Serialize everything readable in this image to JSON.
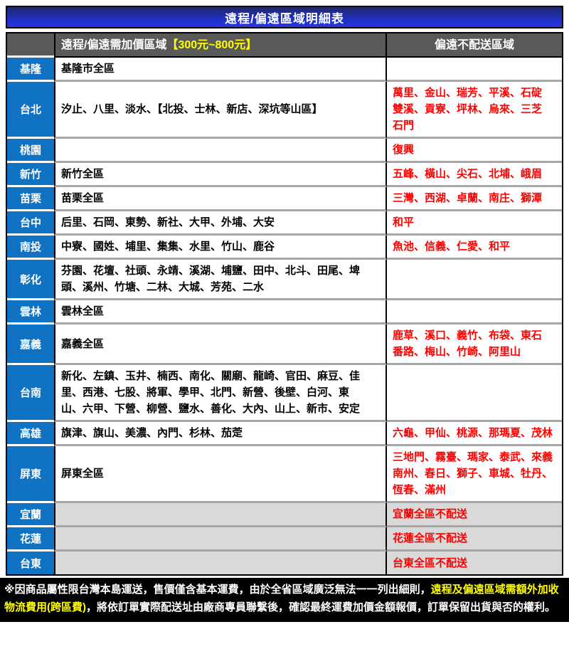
{
  "title": "遠程/偏遠區域明細表",
  "header": {
    "surcharge_label": "遠程/偏遠需加價區域",
    "surcharge_range": "【300元~800元】",
    "no_delivery_label": "偏遠不配送區域"
  },
  "colors": {
    "title_gradient_top": "#23266a",
    "title_gradient_bottom": "#2736e4",
    "region_blue": "#0f72c2",
    "header_gray": "#595959",
    "row_separator_gray": "#a6a6a6",
    "disabled_row_gray": "#d9d9d9",
    "warning_red": "#ff0000",
    "highlight_yellow": "#ffff00"
  },
  "table": {
    "rows": [
      {
        "region": "基隆",
        "surcharge": "基隆市全區",
        "no_delivery": "",
        "gray": false
      },
      {
        "region": "台北",
        "surcharge": "汐止、八里、淡水、【北投、士林、新店、深坑等山區】",
        "no_delivery": "萬里、金山、瑞芳、平溪、石碇\n雙溪、貢寮、坪林、烏來、三芝\n石門",
        "gray": false
      },
      {
        "region": "桃園",
        "surcharge": "",
        "no_delivery": "復興",
        "gray": false
      },
      {
        "region": "新竹",
        "surcharge": "新竹全區",
        "no_delivery": "五峰、橫山、尖石、北埔、峨眉",
        "gray": false
      },
      {
        "region": "苗栗",
        "surcharge": "苗栗全區",
        "no_delivery": "三灣、西湖、卓蘭、南庄、獅潭",
        "gray": false
      },
      {
        "region": "台中",
        "surcharge": "后里、石岡、東勢、新社、大甲、外埔、大安",
        "no_delivery": "和平",
        "gray": false
      },
      {
        "region": "南投",
        "surcharge": "中寮、國姓、埔里、集集、水里、竹山、鹿谷",
        "no_delivery": "魚池、信義、仁愛、和平",
        "gray": false
      },
      {
        "region": "彰化",
        "surcharge": "芬園、花壇、社頭、永靖、溪湖、埔鹽、田中、北斗、田尾、埤\n頭、溪州、竹塘、二林、大城、芳苑、二水",
        "no_delivery": "",
        "gray": false
      },
      {
        "region": "雲林",
        "surcharge": "雲林全區",
        "no_delivery": "",
        "gray": false
      },
      {
        "region": "嘉義",
        "surcharge": "嘉義全區",
        "no_delivery": "鹿草、溪口、義竹、布袋、東石\n番路、梅山、竹崎、阿里山",
        "gray": false
      },
      {
        "region": "台南",
        "surcharge": "新化、左鎮、玉井、楠西、南化、關廟、龍崎、官田、麻豆、佳\n里、西港、七股、將軍、學甲、北門、新營、後壁、白河、東\n山、六甲、下營、柳營、鹽水、善化、大內、山上、新市、安定",
        "no_delivery": "",
        "gray": false
      },
      {
        "region": "高雄",
        "surcharge": "旗津、旗山、美濃、內門、杉林、茄萣",
        "no_delivery": "六龜、甲仙、桃源、那瑪夏、茂林",
        "gray": false
      },
      {
        "region": "屏東",
        "surcharge": "屏東全區",
        "no_delivery": "三地門、霧臺、瑪家、泰武、來義\n南州、春日、獅子、車城、牡丹、\n恆春、滿州",
        "gray": false
      },
      {
        "region": "宜蘭",
        "surcharge": "",
        "no_delivery": "宜蘭全區不配送",
        "gray": true
      },
      {
        "region": "花蓮",
        "surcharge": "",
        "no_delivery": "花蓮全區不配送",
        "gray": true
      },
      {
        "region": "台東",
        "surcharge": "",
        "no_delivery": "台東全區不配送",
        "gray": true
      }
    ]
  },
  "footer": {
    "segments": [
      {
        "text": "※因商品屬性限台灣本島運送，售價僅含基本運費，由於全省區域廣泛無法一一列出細則，",
        "color": "white"
      },
      {
        "text": "遠程及偏遠區域需額外加收物流費用(跨區費)",
        "color": "yellow"
      },
      {
        "text": "，將依訂單實際配送址由廠商專員聯繫後，確認最終運費加價金額報價，訂單保留出貨與否的權利。",
        "color": "white"
      }
    ]
  }
}
